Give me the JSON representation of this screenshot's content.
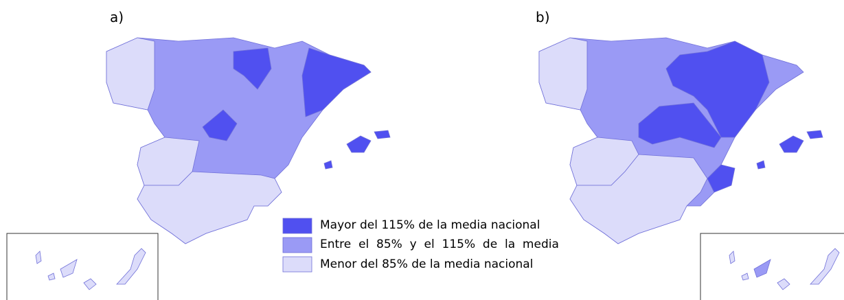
{
  "panels": [
    {
      "label": "a)"
    },
    {
      "label": "b)"
    }
  ],
  "legend": [
    {
      "label": "Mayor del 115% de la media nacional",
      "color": "#5050f0"
    },
    {
      "label": "Entre  el  85%  y  el  115%  de  la  media",
      "color": "#9a9af5"
    },
    {
      "label": "Menor del 85% de la media nacional",
      "color": "#dcdcfa"
    }
  ]
}
